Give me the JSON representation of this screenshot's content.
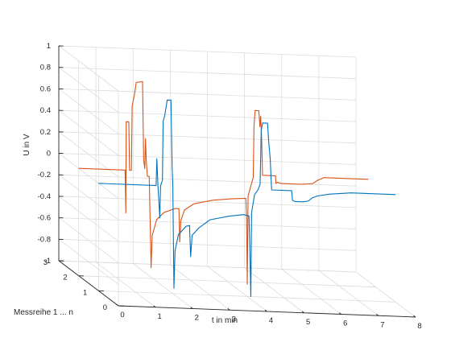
{
  "chart_data": {
    "type": "line",
    "title": "",
    "xlabel": "t in min",
    "ylabel": "Messreihe 1 ... n",
    "zlabel": "U in V",
    "xlim": [
      0,
      8
    ],
    "ylim": [
      0,
      3
    ],
    "zlim": [
      -1,
      1
    ],
    "x_ticks": [
      "0",
      "1",
      "2",
      "3",
      "4",
      "5",
      "6",
      "7",
      "8"
    ],
    "y_ticks": [
      "0",
      "1",
      "2",
      "3"
    ],
    "z_ticks": [
      "1",
      "0.8",
      "0.6",
      "0.4",
      "0.2",
      "0",
      "-0.2",
      "-0.4",
      "-0.6",
      "-0.8",
      "-1"
    ],
    "grid": true,
    "series": [
      {
        "color": "#d95319",
        "y": 2,
        "points": [
          [
            0.0,
            0.0
          ],
          [
            1.25,
            0.0
          ],
          [
            1.27,
            -0.4
          ],
          [
            1.28,
            0.45
          ],
          [
            1.35,
            0.45
          ],
          [
            1.37,
            0.0
          ],
          [
            1.42,
            0.0
          ],
          [
            1.44,
            0.6
          ],
          [
            1.5,
            0.7
          ],
          [
            1.55,
            0.82
          ],
          [
            1.72,
            0.83
          ],
          [
            1.75,
            0.1
          ],
          [
            1.78,
            0.02
          ],
          [
            1.8,
            0.3
          ],
          [
            1.82,
            0.1
          ],
          [
            1.85,
            -0.05
          ],
          [
            1.9,
            -0.05
          ],
          [
            1.95,
            -0.9
          ],
          [
            1.98,
            -0.6
          ],
          [
            2.1,
            -0.45
          ],
          [
            2.3,
            -0.38
          ],
          [
            2.6,
            -0.34
          ],
          [
            2.7,
            -0.34
          ],
          [
            2.72,
            -0.65
          ],
          [
            2.75,
            -0.45
          ],
          [
            2.85,
            -0.35
          ],
          [
            3.1,
            -0.29
          ],
          [
            3.6,
            -0.25
          ],
          [
            4.1,
            -0.23
          ],
          [
            4.5,
            -0.22
          ],
          [
            4.52,
            -0.4
          ],
          [
            4.54,
            -1.02
          ],
          [
            4.56,
            -0.2
          ],
          [
            4.7,
            -0.02
          ],
          [
            4.72,
            0.45
          ],
          [
            4.75,
            0.6
          ],
          [
            4.85,
            0.6
          ],
          [
            4.88,
            0.45
          ],
          [
            4.9,
            0.55
          ],
          [
            4.93,
            0.3
          ],
          [
            4.95,
            0.0
          ],
          [
            5.3,
            0.0
          ],
          [
            5.31,
            -0.07
          ],
          [
            5.35,
            -0.06
          ],
          [
            5.45,
            -0.07
          ],
          [
            5.8,
            -0.07
          ],
          [
            6.0,
            -0.07
          ],
          [
            6.3,
            -0.06
          ],
          [
            6.42,
            -0.03
          ],
          [
            6.6,
            0.0
          ],
          [
            7.2,
            0.0
          ],
          [
            7.8,
            0.0
          ]
        ]
      },
      {
        "color": "#0072bd",
        "y": 1,
        "points": [
          [
            0.0,
            0.0
          ],
          [
            1.55,
            0.0
          ],
          [
            1.57,
            0.25
          ],
          [
            1.6,
            0.0
          ],
          [
            1.65,
            -0.3
          ],
          [
            1.67,
            0.0
          ],
          [
            1.72,
            0.05
          ],
          [
            1.74,
            0.6
          ],
          [
            1.78,
            0.65
          ],
          [
            1.85,
            0.8
          ],
          [
            1.95,
            0.8
          ],
          [
            1.98,
            0.2
          ],
          [
            2.0,
            0.0
          ],
          [
            2.03,
            -0.95
          ],
          [
            2.06,
            -0.6
          ],
          [
            2.15,
            -0.45
          ],
          [
            2.35,
            -0.37
          ],
          [
            2.45,
            -0.36
          ],
          [
            2.48,
            -0.65
          ],
          [
            2.52,
            -0.45
          ],
          [
            2.7,
            -0.38
          ],
          [
            3.0,
            -0.3
          ],
          [
            3.5,
            -0.26
          ],
          [
            3.9,
            -0.24
          ],
          [
            4.05,
            -0.25
          ],
          [
            4.07,
            -0.5
          ],
          [
            4.1,
            -1.0
          ],
          [
            4.12,
            -0.22
          ],
          [
            4.2,
            -0.05
          ],
          [
            4.3,
            0.0
          ],
          [
            4.35,
            0.05
          ],
          [
            4.38,
            0.55
          ],
          [
            4.42,
            0.62
          ],
          [
            4.55,
            0.62
          ],
          [
            4.58,
            0.45
          ],
          [
            4.62,
            0.3
          ],
          [
            4.66,
            0.0
          ],
          [
            5.2,
            0.0
          ],
          [
            5.22,
            -0.09
          ],
          [
            5.3,
            -0.1
          ],
          [
            5.5,
            -0.1
          ],
          [
            5.65,
            -0.09
          ],
          [
            5.75,
            -0.06
          ],
          [
            5.9,
            -0.04
          ],
          [
            6.2,
            -0.02
          ],
          [
            6.8,
            0.0
          ],
          [
            7.5,
            0.0
          ],
          [
            8.0,
            0.0
          ]
        ]
      }
    ]
  }
}
